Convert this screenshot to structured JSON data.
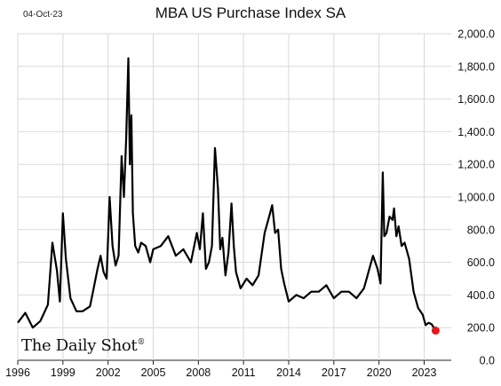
{
  "date_stamp": "04-Oct-23",
  "brand": "The Daily Shot",
  "brand_mark": "®",
  "chart_data": {
    "type": "line",
    "title": "MBA US Purchase Index SA",
    "xlabel": "",
    "ylabel": "",
    "x_ticks": [
      "1996",
      "1999",
      "2002",
      "2005",
      "2008",
      "2011",
      "2014",
      "2017",
      "2020",
      "2023"
    ],
    "y_ticks": [
      "0.0",
      "200.0",
      "400.0",
      "600.0",
      "800.0",
      "1,000.0",
      "1,200.0",
      "1,400.0",
      "1,600.0",
      "1,800.0",
      "2,000.0"
    ],
    "xlim": [
      1996.0,
      2024.8
    ],
    "ylim": [
      0,
      2000
    ],
    "y_axis_side": "right",
    "grid": true,
    "line_color": "#000000",
    "last_point_color": "#e8141c",
    "series": [
      {
        "x": [
          1996.0,
          1996.5,
          1997.0,
          1997.5,
          1998.0,
          1998.3,
          1998.6,
          1998.8,
          1999.0,
          1999.2,
          1999.5,
          1999.9,
          2000.3,
          2000.8,
          2001.0,
          2001.3,
          2001.5,
          2001.7,
          2001.9,
          2002.1,
          2002.3,
          2002.5,
          2002.7,
          2002.9,
          2003.05,
          2003.2,
          2003.35,
          2003.45,
          2003.55,
          2003.65,
          2003.8,
          2004.0,
          2004.2,
          2004.5,
          2004.8,
          2005.0,
          2005.5,
          2006.0,
          2006.5,
          2007.0,
          2007.5,
          2007.9,
          2008.1,
          2008.3,
          2008.5,
          2008.7,
          2008.9,
          2009.1,
          2009.3,
          2009.45,
          2009.6,
          2009.8,
          2010.0,
          2010.2,
          2010.35,
          2010.5,
          2010.8,
          2011.2,
          2011.6,
          2012.0,
          2012.4,
          2012.7,
          2012.9,
          2013.1,
          2013.3,
          2013.5,
          2013.7,
          2014.0,
          2014.5,
          2015.0,
          2015.5,
          2016.0,
          2016.5,
          2017.0,
          2017.5,
          2018.0,
          2018.5,
          2019.0,
          2019.3,
          2019.6,
          2019.9,
          2020.1,
          2020.25,
          2020.35,
          2020.5,
          2020.7,
          2020.9,
          2021.0,
          2021.15,
          2021.3,
          2021.5,
          2021.7,
          2022.0,
          2022.3,
          2022.6,
          2022.9,
          2023.1,
          2023.3,
          2023.5,
          2023.76
        ],
        "values": [
          230,
          290,
          200,
          240,
          340,
          720,
          550,
          360,
          900,
          620,
          380,
          300,
          300,
          330,
          420,
          560,
          640,
          540,
          500,
          1000,
          700,
          580,
          640,
          1250,
          1000,
          1350,
          1850,
          1200,
          1500,
          900,
          700,
          660,
          720,
          700,
          600,
          680,
          700,
          760,
          640,
          680,
          600,
          780,
          680,
          900,
          560,
          600,
          700,
          1300,
          1050,
          680,
          750,
          520,
          660,
          960,
          700,
          540,
          440,
          500,
          460,
          520,
          780,
          880,
          950,
          780,
          800,
          560,
          470,
          360,
          400,
          380,
          420,
          420,
          460,
          380,
          420,
          420,
          380,
          440,
          540,
          640,
          560,
          470,
          1150,
          760,
          780,
          880,
          860,
          930,
          760,
          820,
          700,
          720,
          620,
          420,
          320,
          280,
          215,
          230,
          220,
          182
        ]
      }
    ]
  }
}
